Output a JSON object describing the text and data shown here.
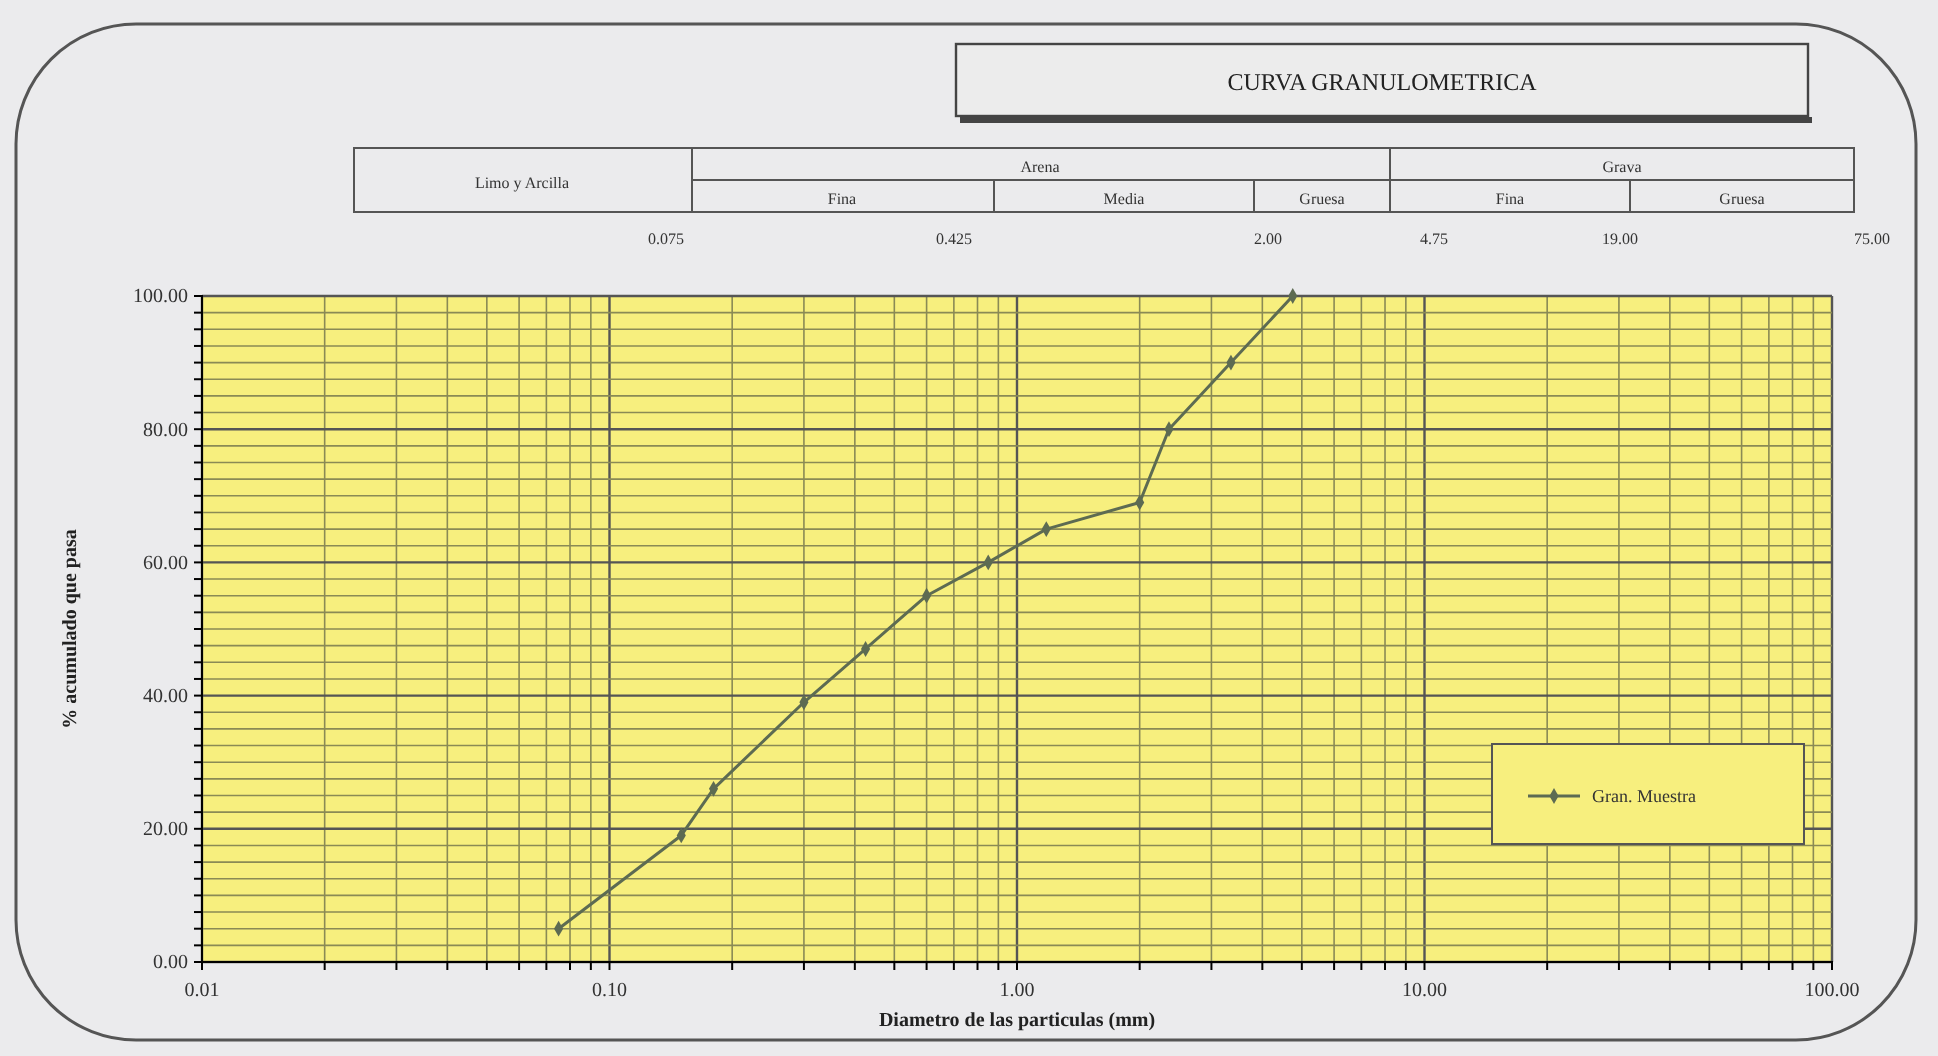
{
  "chart_data": {
    "type": "line",
    "title": "CURVA GRANULOMETRICA",
    "xlabel": "Diametro de las particulas (mm)",
    "ylabel": "% acumulado que pasa",
    "log": "x",
    "xlim": [
      0.01,
      100
    ],
    "ylim": [
      0,
      100
    ],
    "xticks": [
      {
        "value": 0.01,
        "label": "0.01"
      },
      {
        "value": 0.02,
        "label": null
      },
      {
        "value": 0.03,
        "label": null
      },
      {
        "value": 0.04,
        "label": null
      },
      {
        "value": 0.05,
        "label": null
      },
      {
        "value": 0.06,
        "label": null
      },
      {
        "value": 0.07,
        "label": null
      },
      {
        "value": 0.08,
        "label": null
      },
      {
        "value": 0.09,
        "label": null
      },
      {
        "value": 0.1,
        "label": "0.10"
      },
      {
        "value": 0.2,
        "label": null
      },
      {
        "value": 0.3,
        "label": null
      },
      {
        "value": 0.4,
        "label": null
      },
      {
        "value": 0.5,
        "label": null
      },
      {
        "value": 0.6,
        "label": null
      },
      {
        "value": 0.7,
        "label": null
      },
      {
        "value": 0.8,
        "label": null
      },
      {
        "value": 0.9,
        "label": null
      },
      {
        "value": 1,
        "label": "1.00"
      },
      {
        "value": 2,
        "label": null
      },
      {
        "value": 3,
        "label": null
      },
      {
        "value": 4,
        "label": null
      },
      {
        "value": 5,
        "label": null
      },
      {
        "value": 6,
        "label": null
      },
      {
        "value": 7,
        "label": null
      },
      {
        "value": 8,
        "label": null
      },
      {
        "value": 9,
        "label": null
      },
      {
        "value": 10,
        "label": "10.00"
      },
      {
        "value": 20,
        "label": null
      },
      {
        "value": 30,
        "label": null
      },
      {
        "value": 40,
        "label": null
      },
      {
        "value": 50,
        "label": null
      },
      {
        "value": 60,
        "label": null
      },
      {
        "value": 70,
        "label": null
      },
      {
        "value": 80,
        "label": null
      },
      {
        "value": 90,
        "label": null
      },
      {
        "value": 100,
        "label": "100.00"
      }
    ],
    "yticks": [
      {
        "value": 0,
        "label": "0.00"
      },
      {
        "value": 2.5,
        "label": null
      },
      {
        "value": 5,
        "label": null
      },
      {
        "value": 7.5,
        "label": null
      },
      {
        "value": 10,
        "label": null
      },
      {
        "value": 12.5,
        "label": null
      },
      {
        "value": 15,
        "label": null
      },
      {
        "value": 17.5,
        "label": null
      },
      {
        "value": 20,
        "label": "20.00"
      },
      {
        "value": 22.5,
        "label": null
      },
      {
        "value": 25,
        "label": null
      },
      {
        "value": 27.5,
        "label": null
      },
      {
        "value": 30,
        "label": null
      },
      {
        "value": 32.5,
        "label": null
      },
      {
        "value": 35,
        "label": null
      },
      {
        "value": 37.5,
        "label": null
      },
      {
        "value": 40,
        "label": "40.00"
      },
      {
        "value": 42.5,
        "label": null
      },
      {
        "value": 45,
        "label": null
      },
      {
        "value": 47.5,
        "label": null
      },
      {
        "value": 50,
        "label": null
      },
      {
        "value": 52.5,
        "label": null
      },
      {
        "value": 55,
        "label": null
      },
      {
        "value": 57.5,
        "label": null
      },
      {
        "value": 60,
        "label": "60.00"
      },
      {
        "value": 62.5,
        "label": null
      },
      {
        "value": 65,
        "label": null
      },
      {
        "value": 67.5,
        "label": null
      },
      {
        "value": 70,
        "label": null
      },
      {
        "value": 72.5,
        "label": null
      },
      {
        "value": 75,
        "label": null
      },
      {
        "value": 77.5,
        "label": null
      },
      {
        "value": 80,
        "label": "80.00"
      },
      {
        "value": 82.5,
        "label": null
      },
      {
        "value": 85,
        "label": null
      },
      {
        "value": 87.5,
        "label": null
      },
      {
        "value": 90,
        "label": null
      },
      {
        "value": 92.5,
        "label": null
      },
      {
        "value": 95,
        "label": null
      },
      {
        "value": 97.5,
        "label": null
      },
      {
        "value": 100,
        "label": "100.00"
      }
    ],
    "grid": true,
    "legend": "bottom right",
    "marker": "diamond",
    "line_style": "solid",
    "x": [
      0.075,
      0.15,
      0.18,
      0.3,
      0.425,
      0.6,
      0.85,
      1.18,
      2.0,
      2.36,
      3.35,
      4.75
    ],
    "series": [
      {
        "name": "Gran. Muestra",
        "color": "#5d6b52",
        "values": [
          5,
          19,
          26,
          39,
          47,
          55,
          60,
          65,
          69,
          80,
          90,
          100
        ]
      }
    ],
    "annotations": [
      "Limo y Arcilla",
      "Arena",
      "Fina",
      "Media",
      "Gruesa",
      "Grava",
      "Fina",
      "Gruesa",
      "0.075",
      "0.425",
      "2.00",
      "4.75",
      "19.00",
      "75.00"
    ]
  }
}
